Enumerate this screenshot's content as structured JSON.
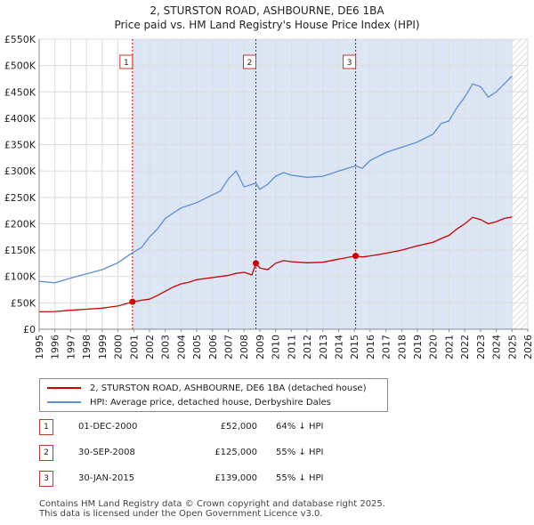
{
  "title": {
    "line1": "2, STURSTON ROAD, ASHBOURNE, DE6 1BA",
    "line2": "Price paid vs. HM Land Registry's House Price Index (HPI)"
  },
  "legend": {
    "property": "2, STURSTON ROAD, ASHBOURNE, DE6 1BA (detached house)",
    "hpi": "HPI: Average price, detached house, Derbyshire Dales"
  },
  "colors": {
    "property": "#cc0000",
    "hpi": "#5b8fd4",
    "marker_border": "#c0392b",
    "span_fill": "#dde6f5",
    "grid": "#dddddd"
  },
  "sales": [
    {
      "num": "1",
      "date": "01-DEC-2000",
      "price": "£52,000",
      "hpi_diff": "64% ↓ HPI"
    },
    {
      "num": "2",
      "date": "30-SEP-2008",
      "price": "£125,000",
      "hpi_diff": "55% ↓ HPI"
    },
    {
      "num": "3",
      "date": "30-JAN-2015",
      "price": "£139,000",
      "hpi_diff": "55% ↓ HPI"
    }
  ],
  "footer": {
    "line1": "Contains HM Land Registry data © Crown copyright and database right 2025.",
    "line2": "This data is licensed under the Open Government Licence v3.0."
  },
  "chart_data": {
    "type": "line",
    "xlim": [
      1995,
      2026
    ],
    "ylim": [
      0,
      550000
    ],
    "x_ticks": [
      1995,
      1996,
      1997,
      1998,
      1999,
      2000,
      2001,
      2002,
      2003,
      2004,
      2005,
      2006,
      2007,
      2008,
      2009,
      2010,
      2011,
      2012,
      2013,
      2014,
      2015,
      2016,
      2017,
      2018,
      2019,
      2020,
      2021,
      2022,
      2023,
      2024,
      2025,
      2026
    ],
    "y_ticks": [
      {
        "value": 0,
        "label": "£0"
      },
      {
        "value": 50000,
        "label": "£50K"
      },
      {
        "value": 100000,
        "label": "£100K"
      },
      {
        "value": 150000,
        "label": "£150K"
      },
      {
        "value": 200000,
        "label": "£200K"
      },
      {
        "value": 250000,
        "label": "£250K"
      },
      {
        "value": 300000,
        "label": "£300K"
      },
      {
        "value": 350000,
        "label": "£350K"
      },
      {
        "value": 400000,
        "label": "£400K"
      },
      {
        "value": 450000,
        "label": "£450K"
      },
      {
        "value": 500000,
        "label": "£500K"
      },
      {
        "value": 550000,
        "label": "£550K"
      }
    ],
    "shaded_span": [
      2000.92,
      2025.0
    ],
    "hatched_from": 2025.0,
    "sale_markers": [
      {
        "label": "1",
        "x": 2000.92,
        "y": 52000
      },
      {
        "label": "2",
        "x": 2008.75,
        "y": 125000
      },
      {
        "label": "3",
        "x": 2015.08,
        "y": 139000
      }
    ],
    "series": [
      {
        "name": "2, STURSTON ROAD, ASHBOURNE, DE6 1BA (detached house)",
        "color": "#cc0000",
        "points": [
          [
            1995,
            33000
          ],
          [
            1996,
            33500
          ],
          [
            1997,
            36000
          ],
          [
            1998,
            38000
          ],
          [
            1999,
            40000
          ],
          [
            2000,
            44000
          ],
          [
            2000.92,
            52000
          ],
          [
            2001.5,
            55000
          ],
          [
            2002,
            57000
          ],
          [
            2002.5,
            64000
          ],
          [
            2003,
            72000
          ],
          [
            2003.5,
            80000
          ],
          [
            2004,
            86000
          ],
          [
            2004.5,
            89000
          ],
          [
            2005,
            94000
          ],
          [
            2006,
            98000
          ],
          [
            2006.5,
            100000
          ],
          [
            2007,
            102000
          ],
          [
            2007.5,
            106000
          ],
          [
            2008,
            108000
          ],
          [
            2008.5,
            103000
          ],
          [
            2008.75,
            125000
          ],
          [
            2009,
            116000
          ],
          [
            2009.5,
            113000
          ],
          [
            2010,
            125000
          ],
          [
            2010.5,
            130000
          ],
          [
            2011,
            128000
          ],
          [
            2012,
            126000
          ],
          [
            2013,
            127000
          ],
          [
            2014,
            133000
          ],
          [
            2015.08,
            139000
          ],
          [
            2015.5,
            137000
          ],
          [
            2016,
            139000
          ],
          [
            2017,
            144000
          ],
          [
            2018,
            150000
          ],
          [
            2019,
            158000
          ],
          [
            2020,
            165000
          ],
          [
            2020.5,
            172000
          ],
          [
            2021,
            178000
          ],
          [
            2021.5,
            190000
          ],
          [
            2022,
            200000
          ],
          [
            2022.5,
            212000
          ],
          [
            2023,
            208000
          ],
          [
            2023.5,
            200000
          ],
          [
            2024,
            204000
          ],
          [
            2024.5,
            210000
          ],
          [
            2025,
            213000
          ]
        ]
      },
      {
        "name": "HPI: Average price, detached house, Derbyshire Dales",
        "color": "#5b8fd4",
        "points": [
          [
            1995,
            91000
          ],
          [
            1996,
            88000
          ],
          [
            1997,
            97000
          ],
          [
            1998,
            105000
          ],
          [
            1999,
            113000
          ],
          [
            2000,
            126000
          ],
          [
            2000.92,
            145000
          ],
          [
            2001.5,
            155000
          ],
          [
            2002,
            175000
          ],
          [
            2002.5,
            190000
          ],
          [
            2003,
            210000
          ],
          [
            2003.5,
            220000
          ],
          [
            2004,
            230000
          ],
          [
            2004.5,
            235000
          ],
          [
            2005,
            240000
          ],
          [
            2006,
            255000
          ],
          [
            2006.5,
            262000
          ],
          [
            2007,
            285000
          ],
          [
            2007.5,
            300000
          ],
          [
            2008,
            270000
          ],
          [
            2008.75,
            277000
          ],
          [
            2009,
            265000
          ],
          [
            2009.5,
            275000
          ],
          [
            2010,
            290000
          ],
          [
            2010.5,
            297000
          ],
          [
            2011,
            292000
          ],
          [
            2012,
            288000
          ],
          [
            2013,
            290000
          ],
          [
            2014,
            300000
          ],
          [
            2015.08,
            310000
          ],
          [
            2015.5,
            305000
          ],
          [
            2016,
            320000
          ],
          [
            2017,
            335000
          ],
          [
            2018,
            345000
          ],
          [
            2019,
            355000
          ],
          [
            2020,
            370000
          ],
          [
            2020.5,
            390000
          ],
          [
            2021,
            395000
          ],
          [
            2021.5,
            420000
          ],
          [
            2022,
            440000
          ],
          [
            2022.5,
            465000
          ],
          [
            2023,
            460000
          ],
          [
            2023.5,
            440000
          ],
          [
            2024,
            450000
          ],
          [
            2024.5,
            465000
          ],
          [
            2025,
            480000
          ]
        ]
      }
    ]
  }
}
